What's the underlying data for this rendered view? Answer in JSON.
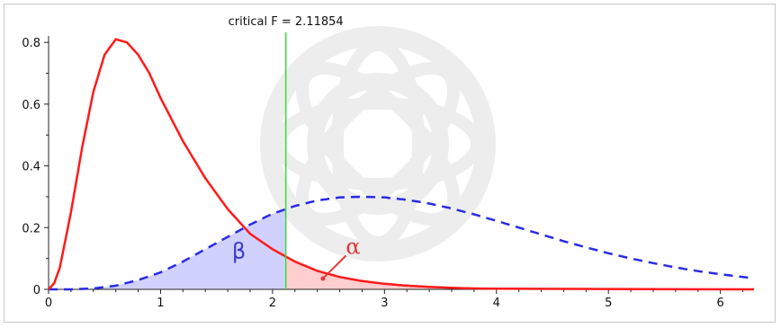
{
  "chart_data": {
    "type": "line",
    "title": "",
    "xlabel": "",
    "ylabel": "",
    "xlim": [
      0,
      6.3
    ],
    "ylim": [
      0,
      0.85
    ],
    "x_ticks": [
      0,
      1,
      2,
      3,
      4,
      5,
      6
    ],
    "y_ticks": [
      0,
      0.2,
      0.4,
      0.6,
      0.8
    ],
    "x_tick_labels": [
      "0",
      "1",
      "2",
      "3",
      "4",
      "5",
      "6"
    ],
    "y_tick_labels": [
      "0",
      "0.2",
      "0.4",
      "0.6",
      "0.8"
    ],
    "series": [
      {
        "style": "solid",
        "color": "#ff1a1a",
        "x": [
          0.0,
          0.05,
          0.1,
          0.2,
          0.3,
          0.4,
          0.5,
          0.6,
          0.7,
          0.8,
          0.9,
          1.0,
          1.2,
          1.4,
          1.6,
          1.8,
          2.0,
          2.2,
          2.4,
          2.6,
          2.8,
          3.0,
          3.2,
          3.4,
          3.6,
          3.8,
          4.0
        ],
        "y": [
          0.0,
          0.02,
          0.07,
          0.25,
          0.46,
          0.64,
          0.76,
          0.81,
          0.8,
          0.76,
          0.7,
          0.62,
          0.48,
          0.36,
          0.26,
          0.18,
          0.13,
          0.09,
          0.06,
          0.04,
          0.027,
          0.018,
          0.012,
          0.008,
          0.005,
          0.003,
          0.002
        ]
      },
      {
        "style": "dashed",
        "color": "#2a2ae6",
        "x": [
          0.0,
          0.2,
          0.4,
          0.6,
          0.8,
          1.0,
          1.2,
          1.4,
          1.6,
          1.8,
          2.0,
          2.2,
          2.4,
          2.6,
          2.8,
          3.0,
          3.2,
          3.4,
          3.6,
          3.8,
          4.0,
          4.2,
          4.4,
          4.6,
          4.8,
          5.0,
          5.2,
          5.4,
          5.6,
          5.8,
          6.0,
          6.2,
          6.3
        ],
        "y": [
          0.0,
          0.0,
          0.003,
          0.012,
          0.03,
          0.055,
          0.09,
          0.13,
          0.17,
          0.21,
          0.245,
          0.27,
          0.288,
          0.298,
          0.3,
          0.298,
          0.29,
          0.278,
          0.262,
          0.243,
          0.222,
          0.2,
          0.178,
          0.156,
          0.136,
          0.117,
          0.1,
          0.085,
          0.071,
          0.059,
          0.049,
          0.04,
          0.036
        ]
      }
    ],
    "critical_value": 2.11854,
    "critical_label": "critical F = 2.11854",
    "critical_line_color": "#33dd33",
    "beta_shade_color": "#b8b8ff",
    "alpha_shade_color": "#ffc2c2",
    "annotations": [
      {
        "text": "β",
        "x": 1.7,
        "y": 0.1,
        "color": "#3a3ad0"
      },
      {
        "text": "α",
        "x": 2.72,
        "y": 0.115,
        "color": "#e03a3a",
        "arrow_to": [
          2.45,
          0.035
        ]
      }
    ],
    "grid": false,
    "legend": "none"
  }
}
